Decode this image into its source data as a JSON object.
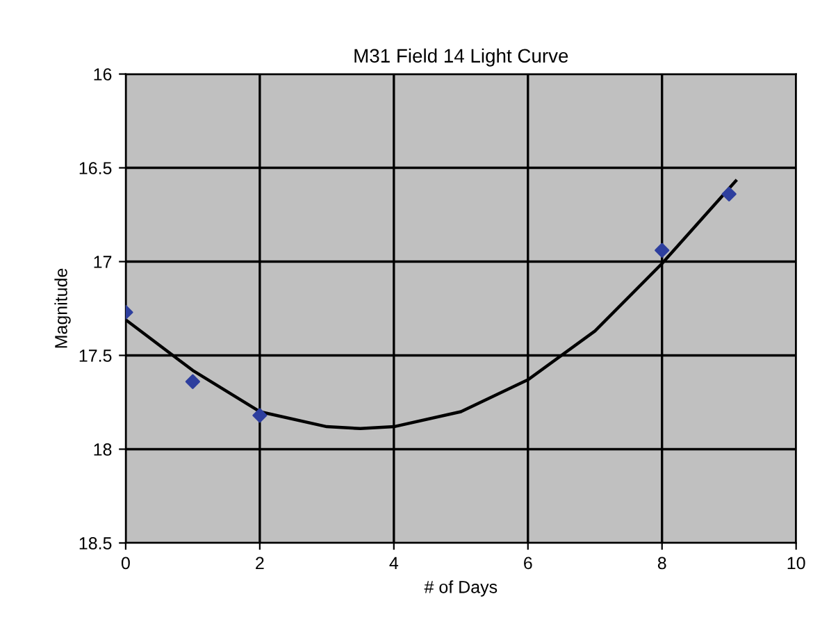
{
  "chart_data": {
    "type": "scatter",
    "title": "M31 Field 14 Light Curve",
    "xlabel": "# of Days",
    "ylabel": "Magnitude",
    "series": [
      {
        "color": "#2e3f9e",
        "marker": "diamond",
        "x": [
          0,
          1,
          2,
          8,
          9
        ],
        "values": [
          17.27,
          17.64,
          17.82,
          16.94,
          16.64
        ]
      },
      {
        "type": "line",
        "color": "#000000",
        "marker": "none",
        "x": [
          0,
          1,
          2,
          3,
          3.5,
          4,
          5,
          6,
          7,
          8,
          9.1
        ],
        "values": [
          17.31,
          17.58,
          17.8,
          17.88,
          17.89,
          17.88,
          17.8,
          17.63,
          17.37,
          17.01,
          16.57
        ]
      }
    ],
    "xlim": [
      0,
      10
    ],
    "xticks": [
      0,
      2,
      4,
      6,
      8,
      10
    ],
    "ylim": [
      18.5,
      16
    ],
    "yticks": [
      16,
      16.5,
      17,
      17.5,
      18,
      18.5
    ],
    "grid": true
  }
}
